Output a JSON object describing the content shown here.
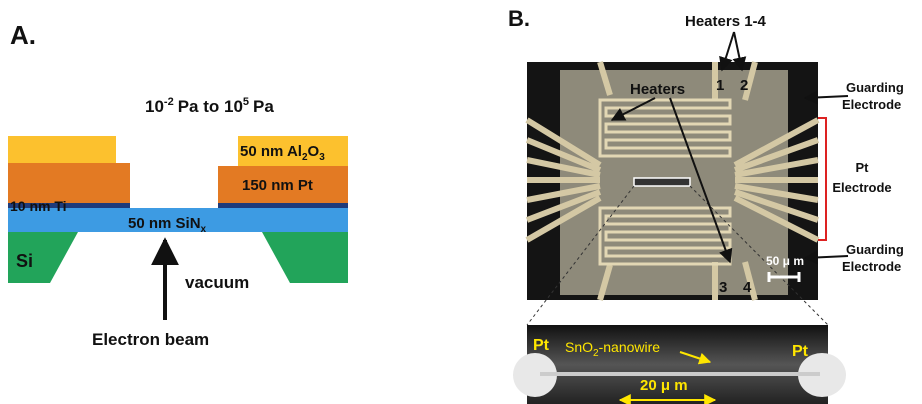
{
  "panel_a": {
    "label": "A.",
    "pressure": {
      "base_low": "10",
      "exp_low": "-2",
      "mid": "Pa to 10",
      "exp_high": "5",
      "unit": "Pa"
    },
    "layers": {
      "al2o3": {
        "prefix": "50 nm Al",
        "sub1": "2",
        "mid": "O",
        "sub2": "3"
      },
      "pt": "150 nm Pt",
      "ti": "10 nm Ti",
      "sinx": {
        "prefix": "50 nm SiN",
        "sub": "x"
      },
      "si": "Si"
    },
    "vacuum": "vacuum",
    "beam": "Electron beam"
  },
  "panel_b": {
    "label": "B.",
    "heaters_1_4": "Heaters 1-4",
    "heater_numbers": [
      "1",
      "2",
      "3",
      "4"
    ],
    "heaters": "Heaters",
    "guarding_top": [
      "Guarding",
      "Electrode"
    ],
    "pt_electrode": [
      "Pt",
      "Electrode"
    ],
    "guarding_bottom": [
      "Guarding",
      "Electrode"
    ],
    "scale_bar": "50 μ m",
    "inset": {
      "pt_left": "Pt",
      "pt_right": "Pt",
      "nanowire": {
        "prefix": "SnO",
        "sub": "2",
        "suffix": "-nanowire"
      },
      "scale_bar": "20 μ m"
    }
  }
}
